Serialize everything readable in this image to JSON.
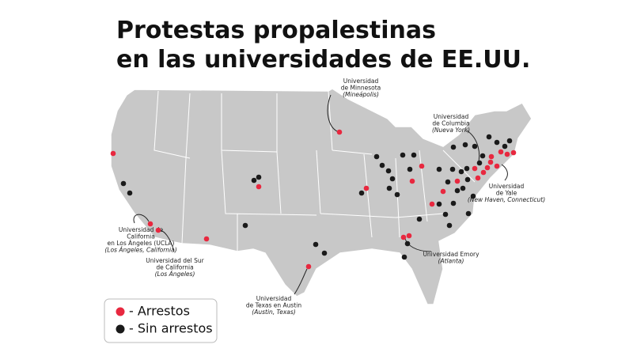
{
  "title": {
    "lines": [
      "Protestas propalestinas",
      "en las universidades de EE.UU."
    ]
  },
  "annotations": [
    {
      "lines": [
        "Universidad",
        "de Minnesota"
      ],
      "place": "(Mineápolis)"
    },
    {
      "lines": [
        "Universidad",
        "de Columbia"
      ],
      "place": "(Nueva York)"
    },
    {
      "lines": [
        "Universidad",
        "de Yale"
      ],
      "place": "(New Haven, Connecticut)"
    },
    {
      "lines": [
        "Universidad de",
        "California",
        "en Los Ángeles (UCLA)"
      ],
      "place": "(Los Ángeles, California)"
    },
    {
      "lines": [
        "Universidad del Sur",
        "de California"
      ],
      "place": "(Los Ángeles)"
    },
    {
      "lines": [
        "Universidad",
        "de Texas en Austin"
      ],
      "place": "(Austin, Texas)"
    },
    {
      "lines": [
        "Universidad Emory"
      ],
      "place": "(Atlanta)"
    }
  ],
  "legend": {
    "items": [
      {
        "label": "- Arrestos",
        "color": "#e8283f"
      },
      {
        "label": "- Sin arrestos",
        "color": "#1a1a1a"
      }
    ]
  }
}
